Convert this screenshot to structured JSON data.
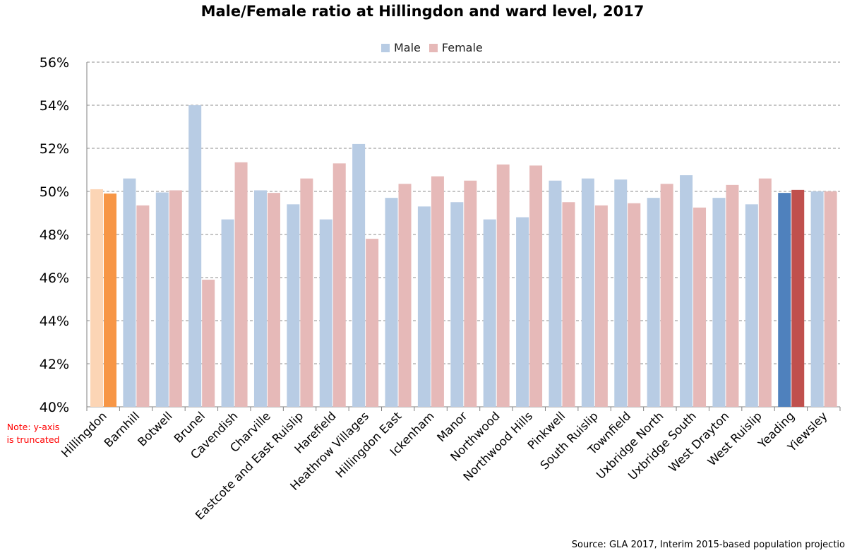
{
  "chart_data": {
    "type": "bar",
    "title": "Male/Female ratio at Hillingdon and ward level, 2017",
    "xlabel": "",
    "ylabel": "",
    "ylim": [
      0.4,
      0.56
    ],
    "yticks": [
      "40%",
      "42%",
      "44%",
      "46%",
      "48%",
      "50%",
      "52%",
      "54%",
      "56%"
    ],
    "grid": true,
    "legend_position": "top-center",
    "categories": [
      "Hillingdon",
      "Barnhill",
      "Botwell",
      "Brunel",
      "Cavendish",
      "Charville",
      "Eastcote and East Ruislip",
      "Harefield",
      "Heathrow Villages",
      "Hillingdon East",
      "Ickenham",
      "Manor",
      "Northwood",
      "Northwood Hills",
      "Pinkwell",
      "South Ruislip",
      "Townfield",
      "Uxbridge North",
      "Uxbridge South",
      "West Drayton",
      "West Ruislip",
      "Yeading",
      "Yiewsley"
    ],
    "series": [
      {
        "name": "Male",
        "values": [
          0.501,
          0.506,
          0.4995,
          0.54,
          0.487,
          0.5005,
          0.494,
          0.487,
          0.522,
          0.497,
          0.493,
          0.495,
          0.487,
          0.488,
          0.505,
          0.506,
          0.5055,
          0.497,
          0.5075,
          0.497,
          0.494,
          0.4993,
          0.5
        ]
      },
      {
        "name": "Female",
        "values": [
          0.499,
          0.4935,
          0.5005,
          0.459,
          0.5135,
          0.4993,
          0.506,
          0.513,
          0.478,
          0.5035,
          0.507,
          0.505,
          0.5125,
          0.512,
          0.495,
          0.4935,
          0.4945,
          0.5035,
          0.4925,
          0.503,
          0.506,
          0.5007,
          0.5
        ]
      }
    ],
    "colors": {
      "male": "#b8cce4",
      "female": "#e6b9b8",
      "hillingdon_male": "#fcd5b5",
      "hillingdon_female": "#f79646",
      "yeading_male": "#4f81bd",
      "yeading_female": "#c0504d",
      "grid": "#8c8c8c",
      "axis": "#808080"
    }
  },
  "legend": {
    "male_label": "Male",
    "female_label": "Female"
  },
  "note": {
    "line1": "Note: y-axis",
    "line2": "is truncated"
  },
  "source": "Source: GLA 2017, Interim 2015-based population projectio"
}
